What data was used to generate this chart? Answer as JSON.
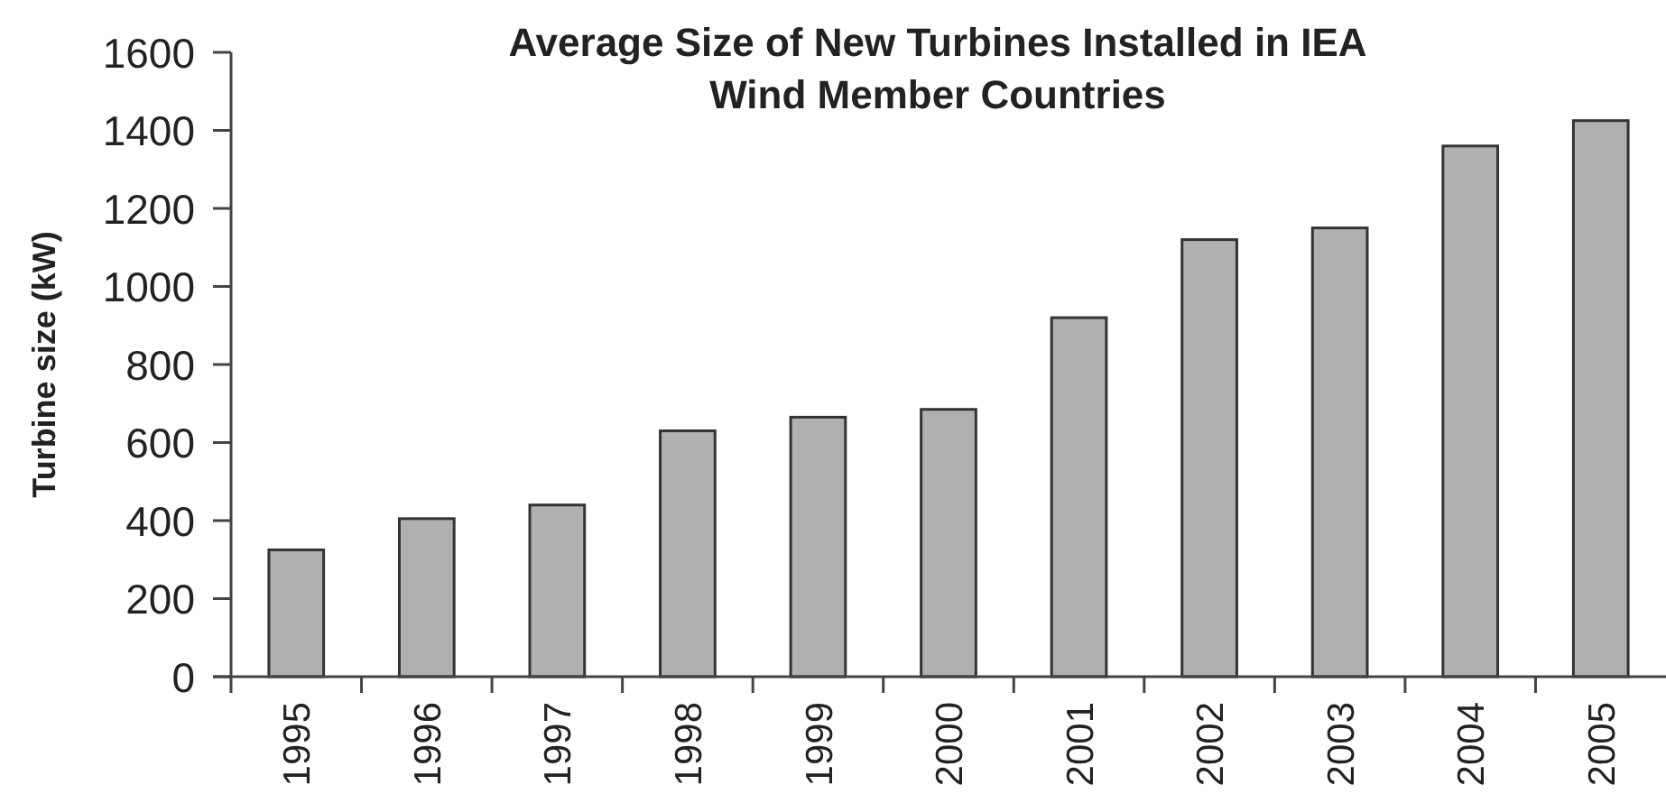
{
  "chart_data": {
    "type": "bar",
    "title": "Average Size of New Turbines Installed in IEA Wind Member Countries",
    "ylabel": "Turbine size (kW)",
    "categories": [
      "1995",
      "1996",
      "1997",
      "1998",
      "1999",
      "2000",
      "2001",
      "2002",
      "2003",
      "2004",
      "2005"
    ],
    "values": [
      325,
      405,
      440,
      630,
      665,
      685,
      920,
      1120,
      1150,
      1360,
      1425
    ],
    "color": "#b0b0b2",
    "ylim": [
      0,
      1600
    ],
    "yticks": [
      0,
      200,
      400,
      600,
      800,
      1000,
      1200,
      1400,
      1600
    ]
  }
}
